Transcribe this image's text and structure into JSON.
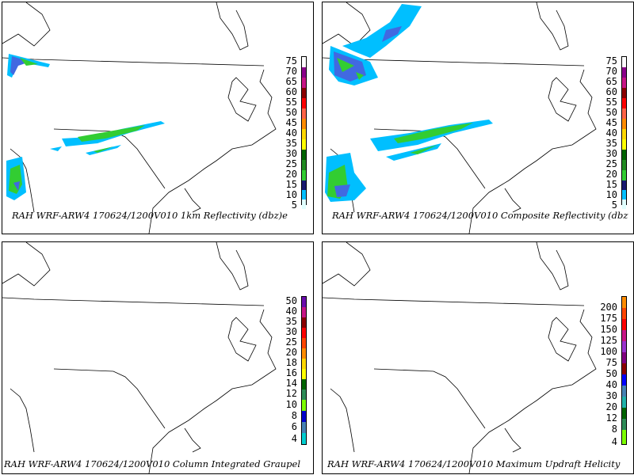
{
  "panels": [
    {
      "caption": "RAH WRF-ARW4 170624/1200V010  1km Reflectivity (dbz)e",
      "scale_labels": [
        "75",
        "70",
        "65",
        "60",
        "55",
        "50",
        "45",
        "40",
        "35",
        "30",
        "25",
        "20",
        "15",
        "10",
        "5"
      ]
    },
    {
      "caption": "RAH WRF-ARW4 170624/1200V010  Composite Reflectivity (dbz",
      "scale_labels": [
        "75",
        "70",
        "65",
        "60",
        "55",
        "50",
        "45",
        "40",
        "35",
        "30",
        "25",
        "20",
        "15",
        "10",
        "5"
      ]
    },
    {
      "caption": "RAH WRF-ARW4 170624/1200V010  Column Integrated Graupel",
      "scale_labels": [
        "50",
        "40",
        "35",
        "30",
        "25",
        "20",
        "18",
        "16",
        "14",
        "12",
        "10",
        "8",
        "6",
        "4"
      ]
    },
    {
      "caption": "RAH WRF-ARW4 170624/1200V010  Maximum Updraft Helicity",
      "scale_labels": [
        "200",
        "175",
        "150",
        "125",
        "100",
        "75",
        "50",
        "40",
        "30",
        "20",
        "12",
        "8",
        "4"
      ]
    }
  ],
  "colors": {
    "reflectivity": [
      "#ffffff",
      "#8b008b",
      "#c71585",
      "#8b0000",
      "#ff0000",
      "#ff6347",
      "#ff8c00",
      "#ffd700",
      "#ffff00",
      "#006400",
      "#228b22",
      "#32cd32",
      "#191970",
      "#4169e1",
      "#00bfff",
      "#e0ffff"
    ],
    "graupel": [
      "#ffffff",
      "#6a0dad",
      "#c71585",
      "#8b0000",
      "#ff0000",
      "#ff4500",
      "#ff8c00",
      "#ffd700",
      "#ffff00",
      "#006400",
      "#2e8b57",
      "#7cfc00",
      "#0000cd",
      "#4682b4",
      "#00ced1"
    ],
    "helicity": [
      "#ff8c00",
      "#ff4500",
      "#ff0000",
      "#c71585",
      "#9932cc",
      "#800080",
      "#8b0000",
      "#0000ff",
      "#4682b4",
      "#20b2aa",
      "#006400",
      "#2e8b57",
      "#7cfc00"
    ]
  }
}
